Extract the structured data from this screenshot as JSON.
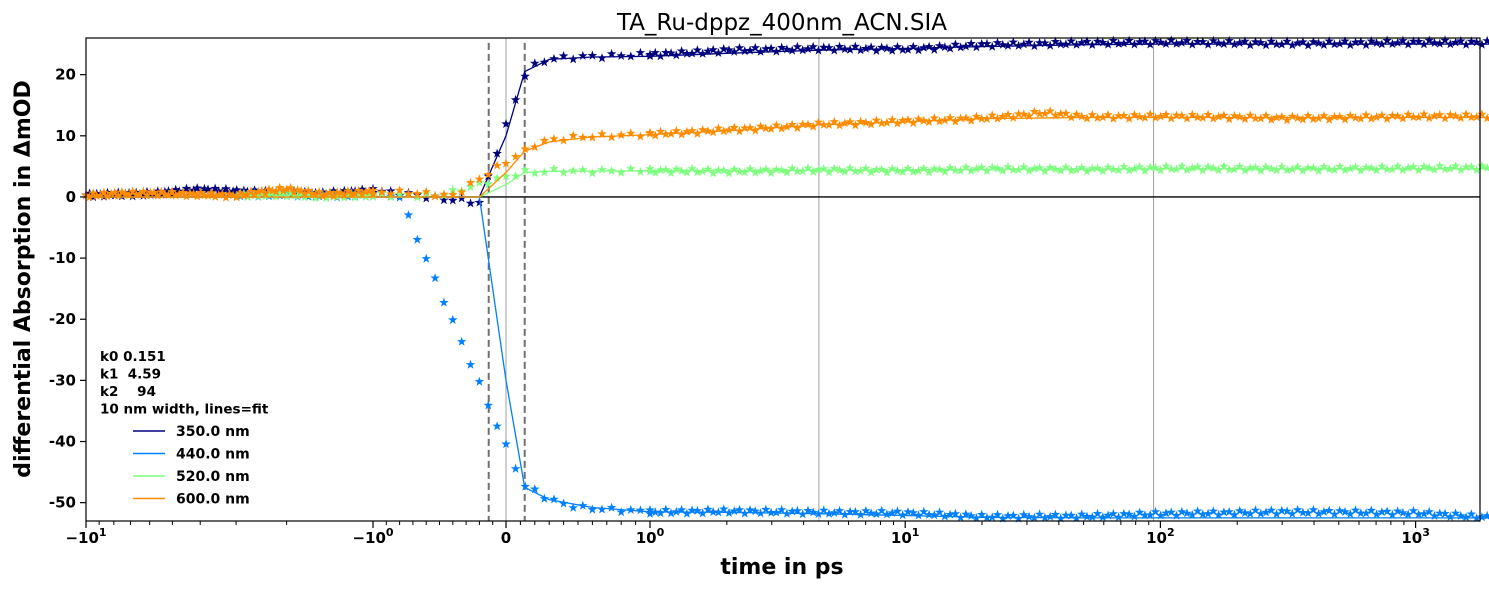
{
  "chart_data": {
    "type": "line",
    "title": "TA_Ru-dppz_400nm_ACN.SIA",
    "xlabel": "time in ps",
    "ylabel": "differential Absorption in ΔmOD",
    "x_scale": "symlog",
    "xlim": [
      -10,
      2000
    ],
    "ylim": [
      -53,
      26
    ],
    "y_ticks": [
      20,
      10,
      0,
      -10,
      -20,
      -30,
      -40,
      -50
    ],
    "y_tick_labels": [
      "20",
      "10",
      "0",
      "-10",
      "-20",
      "-30",
      "-40",
      "-50"
    ],
    "x_tick_labels": [
      {
        "base": "−10",
        "exp": "1"
      },
      {
        "base": "−10",
        "exp": "0"
      },
      {
        "base": "0",
        "exp": ""
      },
      {
        "base": "10",
        "exp": "0"
      },
      {
        "base": "10",
        "exp": "1"
      },
      {
        "base": "10",
        "exp": "2"
      },
      {
        "base": "10",
        "exp": "3"
      }
    ],
    "zero_line": true,
    "vertical_dashed_lines_x": [
      -0.13,
      0.13
    ],
    "vertical_grid_lines_x": [
      0,
      4.59,
      94
    ],
    "info_text": [
      "k0 0.151",
      "k1  4.59",
      "k2    94",
      "10 nm width, lines=fit"
    ],
    "legend_position": "lower-left",
    "series": [
      {
        "name": "350.0 nm",
        "color": "#00007f",
        "fit": [
          [
            -10,
            0
          ],
          [
            -0.2,
            0
          ],
          [
            0,
            10
          ],
          [
            0.13,
            20.5
          ],
          [
            0.3,
            22.5
          ],
          [
            0.6,
            22.9
          ],
          [
            1,
            23.0
          ],
          [
            2,
            23.5
          ],
          [
            4.59,
            24.0
          ],
          [
            10,
            24.3
          ],
          [
            20,
            24.6
          ],
          [
            50,
            24.9
          ],
          [
            100,
            25.0
          ],
          [
            2000,
            25.0
          ]
        ],
        "points": [
          [
            -10,
            0.3
          ],
          [
            -8,
            0.4
          ],
          [
            -6,
            0.5
          ],
          [
            -4,
            1.2
          ],
          [
            -2,
            0.6
          ],
          [
            -1.5,
            0.5
          ],
          [
            -1,
            1.0
          ],
          [
            -0.7,
            0.4
          ],
          [
            -0.5,
            -0.3
          ],
          [
            -0.3,
            -0.6
          ],
          [
            -0.2,
            -1.0
          ],
          [
            0.13,
            19.9
          ],
          [
            0.2,
            21.5
          ],
          [
            0.3,
            22.6
          ],
          [
            0.5,
            22.9
          ],
          [
            1,
            23.3
          ],
          [
            2,
            24.0
          ],
          [
            4.59,
            24.3
          ],
          [
            10,
            24.2
          ],
          [
            20,
            24.9
          ],
          [
            50,
            25.2
          ],
          [
            100,
            25.3
          ],
          [
            300,
            25.1
          ],
          [
            1000,
            25.3
          ],
          [
            2000,
            25.2
          ]
        ]
      },
      {
        "name": "440.0 nm",
        "color": "#0080ff",
        "fit": [
          [
            -10,
            0
          ],
          [
            -0.2,
            0
          ],
          [
            0,
            -30
          ],
          [
            0.13,
            -47.5
          ],
          [
            0.3,
            -49.5
          ],
          [
            0.6,
            -50.8
          ],
          [
            1,
            -51.5
          ],
          [
            2,
            -51.6
          ],
          [
            4.59,
            -51.8
          ],
          [
            10,
            -52.1
          ],
          [
            20,
            -52.4
          ],
          [
            50,
            -52.5
          ],
          [
            100,
            -52.5
          ],
          [
            2000,
            -52.5
          ]
        ],
        "points": [
          [
            -3,
            0.3
          ],
          [
            -2,
            0.5
          ],
          [
            -1.5,
            0.2
          ],
          [
            -1,
            0.4
          ],
          [
            -0.8,
            0.1
          ],
          [
            0.13,
            -47.4
          ],
          [
            0.2,
            -48.0
          ],
          [
            0.3,
            -49.5
          ],
          [
            0.5,
            -50.8
          ],
          [
            1,
            -51.5
          ],
          [
            2,
            -51.4
          ],
          [
            4.59,
            -51.6
          ],
          [
            10,
            -51.7
          ],
          [
            20,
            -52.3
          ],
          [
            50,
            -52.2
          ],
          [
            100,
            -51.8
          ],
          [
            300,
            -51.5
          ],
          [
            1000,
            -51.7
          ],
          [
            2000,
            -52.5
          ]
        ]
      },
      {
        "name": "520.0 nm",
        "color": "#7fff7f",
        "fit": [
          [
            -10,
            0
          ],
          [
            -0.2,
            0
          ],
          [
            0,
            2.0
          ],
          [
            0.13,
            4.0
          ],
          [
            0.3,
            4.2
          ],
          [
            1,
            4.3
          ],
          [
            4.59,
            4.4
          ],
          [
            20,
            4.5
          ],
          [
            100,
            4.6
          ],
          [
            2000,
            4.6
          ]
        ],
        "points": [
          [
            -3,
            0.3
          ],
          [
            -2,
            0.4
          ],
          [
            -1.5,
            0.1
          ],
          [
            -1,
            0.3
          ],
          [
            -0.5,
            0.2
          ],
          [
            0.13,
            4.1
          ],
          [
            0.2,
            4.0
          ],
          [
            0.3,
            4.3
          ],
          [
            0.5,
            4.2
          ],
          [
            1,
            4.3
          ],
          [
            2,
            4.2
          ],
          [
            4.59,
            4.4
          ],
          [
            10,
            4.3
          ],
          [
            20,
            4.6
          ],
          [
            50,
            4.5
          ],
          [
            100,
            4.7
          ],
          [
            300,
            4.6
          ],
          [
            1000,
            4.7
          ],
          [
            2000,
            4.8
          ]
        ]
      },
      {
        "name": "600.0 nm",
        "color": "#ff8c00",
        "fit": [
          [
            -10,
            0
          ],
          [
            -0.2,
            0
          ],
          [
            0,
            4.0
          ],
          [
            0.13,
            7.5
          ],
          [
            0.3,
            9.0
          ],
          [
            0.6,
            9.8
          ],
          [
            1,
            10.2
          ],
          [
            2,
            10.8
          ],
          [
            4.59,
            11.8
          ],
          [
            10,
            12.3
          ],
          [
            20,
            12.8
          ],
          [
            50,
            13.0
          ],
          [
            100,
            13.0
          ],
          [
            2000,
            13.0
          ]
        ],
        "points": [
          [
            -10,
            0.2
          ],
          [
            -8,
            0.5
          ],
          [
            -6,
            0.6
          ],
          [
            -4,
            0.4
          ],
          [
            -3,
            0.2
          ],
          [
            -2,
            1.3
          ],
          [
            -1.5,
            0.4
          ],
          [
            -1,
            0.8
          ],
          [
            -0.7,
            0.7
          ],
          [
            -0.4,
            0.2
          ],
          [
            0.13,
            7.5
          ],
          [
            0.2,
            8.5
          ],
          [
            0.3,
            9.3
          ],
          [
            0.5,
            9.8
          ],
          [
            1,
            10.3
          ],
          [
            2,
            11.0
          ],
          [
            4.59,
            11.9
          ],
          [
            10,
            12.4
          ],
          [
            20,
            12.9
          ],
          [
            35,
            13.8
          ],
          [
            50,
            13.1
          ],
          [
            100,
            13.2
          ],
          [
            300,
            12.9
          ],
          [
            1000,
            13.2
          ],
          [
            2000,
            13.2
          ]
        ]
      }
    ]
  }
}
